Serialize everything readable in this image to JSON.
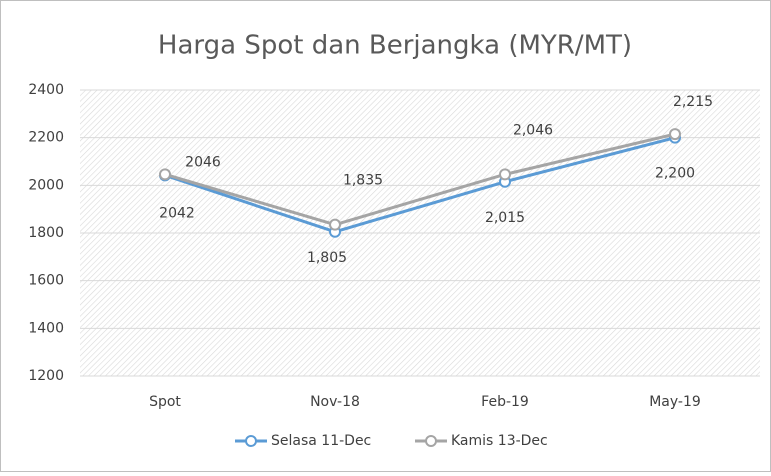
{
  "chart_data": {
    "type": "line",
    "title": "Harga Spot dan Berjangka (MYR/MT)",
    "categories": [
      "Spot",
      "Nov-18",
      "Feb-19",
      "May-19"
    ],
    "series": [
      {
        "name": "Selasa 11-Dec",
        "color": "#5b9bd5",
        "values": [
          2042,
          1805,
          2015,
          2200
        ],
        "value_labels": [
          "2042",
          "1,805",
          "2,015",
          "2,200"
        ]
      },
      {
        "name": "Kamis 13-Dec",
        "color": "#a5a5a5",
        "values": [
          2046,
          1835,
          2046,
          2215
        ],
        "value_labels": [
          "2046",
          "1,835",
          "2,046",
          "2,215"
        ]
      }
    ],
    "ylim": [
      1200,
      2400
    ],
    "yticks": [
      1200,
      1400,
      1600,
      1800,
      2000,
      2200,
      2400
    ],
    "grid": true,
    "legend": "bottom"
  }
}
